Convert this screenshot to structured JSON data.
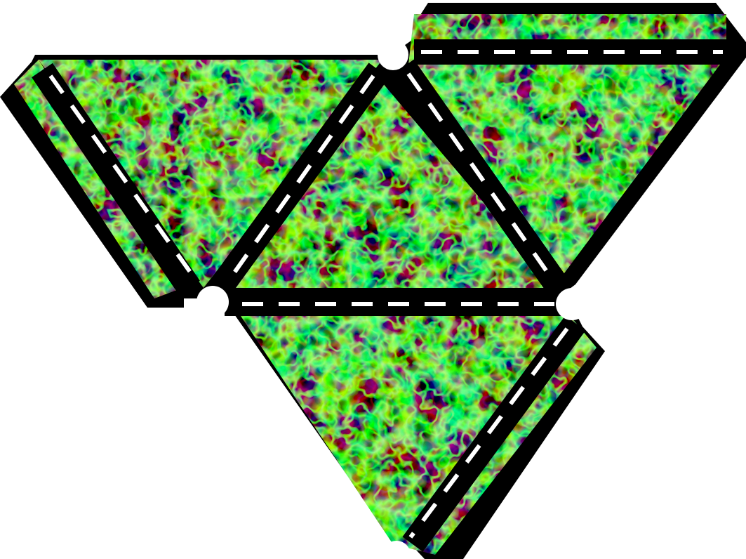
{
  "figure": {
    "kind": "polyhedron-net",
    "faces": [
      {
        "id": "center",
        "orientation": "up"
      },
      {
        "id": "left",
        "orientation": "down"
      },
      {
        "id": "right",
        "orientation": "down"
      },
      {
        "id": "bottom",
        "orientation": "down"
      }
    ],
    "glue_tabs": [
      "left-outer",
      "top-right",
      "bottom-right"
    ],
    "fold_lines": [
      "left-inner",
      "left-diagonal",
      "right-diagonal",
      "top",
      "middle",
      "bottom-right"
    ],
    "colors": {
      "background": "#ffffff",
      "outline": "#000000",
      "fold_dash": "#ffffff",
      "texture_dark": "#000000",
      "texture_line": "#22d614",
      "texture_highlight": "#8cff7a"
    }
  }
}
